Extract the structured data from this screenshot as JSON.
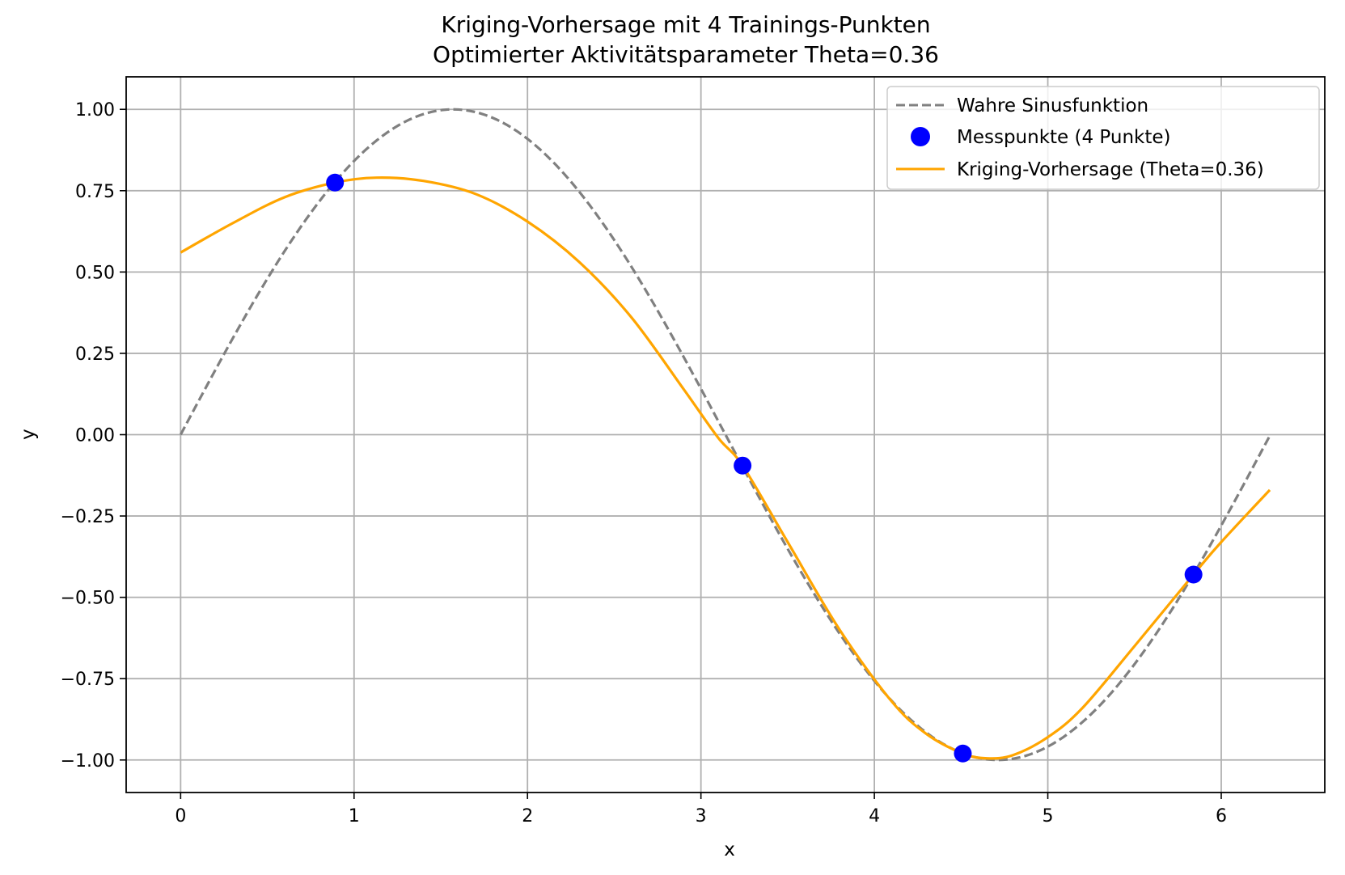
{
  "chart_data": {
    "type": "line",
    "title_line1": "Kriging-Vorhersage mit 4 Trainings-Punkten",
    "title_line2": "Optimierter Aktivitätsparameter Theta=0.36",
    "xlabel": "x",
    "ylabel": "y",
    "xlim": [
      -0.314,
      6.597
    ],
    "ylim": [
      -1.1,
      1.1
    ],
    "xticks": [
      0,
      1,
      2,
      3,
      4,
      5,
      6
    ],
    "xtick_labels": [
      "0",
      "1",
      "2",
      "3",
      "4",
      "5",
      "6"
    ],
    "yticks": [
      1.0,
      0.75,
      0.5,
      0.25,
      0.0,
      -0.25,
      -0.5,
      -0.75,
      -1.0
    ],
    "ytick_labels": [
      "1.00",
      "0.75",
      "0.50",
      "0.25",
      "0.00",
      "−0.25",
      "−0.50",
      "−0.75",
      "−1.00"
    ],
    "grid": true,
    "legend_position": "top-right",
    "series": [
      {
        "name": "Wahre Sinusfunktion",
        "style": "dashed",
        "color": "#808080",
        "function": "sin",
        "x_range": [
          0,
          6.283
        ]
      },
      {
        "name": "Messpunkte (4 Punkte)",
        "style": "markers",
        "color": "#0000ff",
        "x": [
          0.89,
          3.24,
          4.51,
          5.84
        ],
        "y": [
          0.775,
          -0.095,
          -0.98,
          -0.43
        ]
      },
      {
        "name": "Kriging-Vorhersage (Theta=0.36)",
        "style": "solid",
        "color": "#ffa500",
        "x": [
          0.0,
          0.3,
          0.6,
          0.89,
          1.13,
          1.4,
          1.7,
          2.0,
          2.3,
          2.6,
          2.9,
          3.1,
          3.24,
          3.5,
          3.8,
          4.1,
          4.3,
          4.51,
          4.65,
          4.8,
          5.0,
          5.2,
          5.5,
          5.84,
          6.0,
          6.28
        ],
        "y": [
          0.56,
          0.65,
          0.73,
          0.775,
          0.79,
          0.78,
          0.74,
          0.655,
          0.53,
          0.36,
          0.14,
          -0.01,
          -0.095,
          -0.33,
          -0.6,
          -0.82,
          -0.92,
          -0.98,
          -0.995,
          -0.985,
          -0.93,
          -0.84,
          -0.65,
          -0.43,
          -0.33,
          -0.17
        ]
      }
    ]
  }
}
